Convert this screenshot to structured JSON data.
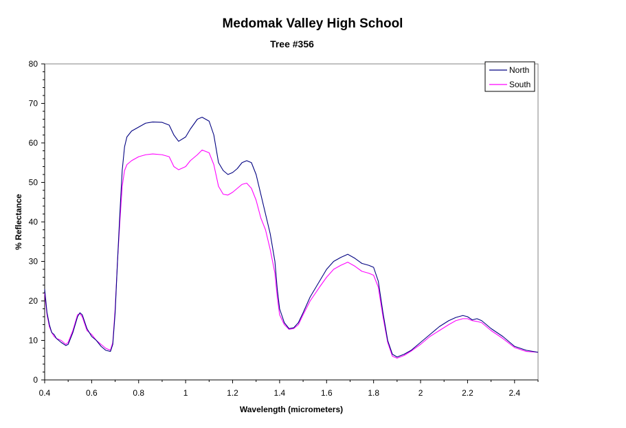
{
  "chart_data": {
    "type": "line",
    "title": "Medomak Valley High School",
    "subtitle": "Tree #356",
    "xlabel": "Wavelength (micrometers)",
    "ylabel": "% Reflectance",
    "xlim": [
      0.4,
      2.5
    ],
    "ylim": [
      0,
      80
    ],
    "x_ticks": [
      0.4,
      0.6,
      0.8,
      1,
      1.2,
      1.4,
      1.6,
      1.8,
      2,
      2.2,
      2.4
    ],
    "x_tick_labels": [
      "0.4",
      "0.6",
      "0.8",
      "1",
      "1.2",
      "1.4",
      "1.6",
      "1.8",
      "2",
      "2.2",
      "2.4"
    ],
    "y_ticks": [
      0,
      10,
      20,
      30,
      40,
      50,
      60,
      70,
      80
    ],
    "y_tick_labels": [
      "0",
      "10",
      "20",
      "30",
      "40",
      "50",
      "60",
      "70",
      "80"
    ],
    "grid": false,
    "legend_position": "top-right",
    "series": [
      {
        "name": "North",
        "color": "#000080",
        "points": [
          [
            0.4,
            23.0
          ],
          [
            0.41,
            17.0
          ],
          [
            0.42,
            14.0
          ],
          [
            0.43,
            12.0
          ],
          [
            0.44,
            11.5
          ],
          [
            0.45,
            10.5
          ],
          [
            0.47,
            9.5
          ],
          [
            0.49,
            8.7
          ],
          [
            0.5,
            9.0
          ],
          [
            0.52,
            12.0
          ],
          [
            0.54,
            16.0
          ],
          [
            0.55,
            17.0
          ],
          [
            0.56,
            16.5
          ],
          [
            0.58,
            13.0
          ],
          [
            0.6,
            11.0
          ],
          [
            0.62,
            10.0
          ],
          [
            0.64,
            8.5
          ],
          [
            0.66,
            7.5
          ],
          [
            0.68,
            7.2
          ],
          [
            0.69,
            9.0
          ],
          [
            0.7,
            17.0
          ],
          [
            0.71,
            30.0
          ],
          [
            0.72,
            42.0
          ],
          [
            0.73,
            53.0
          ],
          [
            0.74,
            59.0
          ],
          [
            0.75,
            61.5
          ],
          [
            0.77,
            63.0
          ],
          [
            0.8,
            64.0
          ],
          [
            0.83,
            65.0
          ],
          [
            0.86,
            65.3
          ],
          [
            0.9,
            65.2
          ],
          [
            0.93,
            64.5
          ],
          [
            0.95,
            62.0
          ],
          [
            0.97,
            60.4
          ],
          [
            1.0,
            61.5
          ],
          [
            1.02,
            63.5
          ],
          [
            1.05,
            66.0
          ],
          [
            1.07,
            66.5
          ],
          [
            1.1,
            65.5
          ],
          [
            1.12,
            62.0
          ],
          [
            1.14,
            55.0
          ],
          [
            1.16,
            53.0
          ],
          [
            1.18,
            52.0
          ],
          [
            1.2,
            52.5
          ],
          [
            1.22,
            53.5
          ],
          [
            1.24,
            55.0
          ],
          [
            1.26,
            55.5
          ],
          [
            1.28,
            55.0
          ],
          [
            1.3,
            52.0
          ],
          [
            1.32,
            47.0
          ],
          [
            1.34,
            42.0
          ],
          [
            1.36,
            37.0
          ],
          [
            1.38,
            30.0
          ],
          [
            1.39,
            23.0
          ],
          [
            1.4,
            18.0
          ],
          [
            1.42,
            14.5
          ],
          [
            1.44,
            13.0
          ],
          [
            1.46,
            13.2
          ],
          [
            1.48,
            14.5
          ],
          [
            1.5,
            17.0
          ],
          [
            1.53,
            21.0
          ],
          [
            1.57,
            25.0
          ],
          [
            1.6,
            28.0
          ],
          [
            1.63,
            30.0
          ],
          [
            1.66,
            31.0
          ],
          [
            1.69,
            31.8
          ],
          [
            1.72,
            30.8
          ],
          [
            1.75,
            29.5
          ],
          [
            1.78,
            29.0
          ],
          [
            1.8,
            28.5
          ],
          [
            1.82,
            25.0
          ],
          [
            1.84,
            17.0
          ],
          [
            1.86,
            10.0
          ],
          [
            1.88,
            6.5
          ],
          [
            1.9,
            5.8
          ],
          [
            1.93,
            6.5
          ],
          [
            1.96,
            7.5
          ],
          [
            2.0,
            9.5
          ],
          [
            2.04,
            11.5
          ],
          [
            2.08,
            13.5
          ],
          [
            2.12,
            15.0
          ],
          [
            2.15,
            15.8
          ],
          [
            2.18,
            16.3
          ],
          [
            2.2,
            16.0
          ],
          [
            2.22,
            15.2
          ],
          [
            2.24,
            15.5
          ],
          [
            2.26,
            15.0
          ],
          [
            2.3,
            13.0
          ],
          [
            2.35,
            11.0
          ],
          [
            2.4,
            8.5
          ],
          [
            2.45,
            7.5
          ],
          [
            2.5,
            7.0
          ]
        ]
      },
      {
        "name": "South",
        "color": "#ff00ff",
        "points": [
          [
            0.4,
            22.0
          ],
          [
            0.41,
            16.5
          ],
          [
            0.42,
            13.5
          ],
          [
            0.43,
            12.0
          ],
          [
            0.44,
            11.0
          ],
          [
            0.45,
            10.5
          ],
          [
            0.47,
            10.0
          ],
          [
            0.49,
            9.0
          ],
          [
            0.5,
            9.5
          ],
          [
            0.52,
            12.5
          ],
          [
            0.54,
            16.5
          ],
          [
            0.55,
            16.8
          ],
          [
            0.56,
            16.0
          ],
          [
            0.58,
            12.5
          ],
          [
            0.6,
            11.5
          ],
          [
            0.62,
            10.0
          ],
          [
            0.64,
            9.0
          ],
          [
            0.66,
            8.0
          ],
          [
            0.68,
            7.5
          ],
          [
            0.69,
            9.5
          ],
          [
            0.7,
            18.0
          ],
          [
            0.71,
            30.0
          ],
          [
            0.72,
            40.0
          ],
          [
            0.73,
            49.0
          ],
          [
            0.74,
            53.0
          ],
          [
            0.75,
            54.5
          ],
          [
            0.77,
            55.5
          ],
          [
            0.8,
            56.5
          ],
          [
            0.83,
            57.0
          ],
          [
            0.86,
            57.2
          ],
          [
            0.9,
            57.0
          ],
          [
            0.93,
            56.5
          ],
          [
            0.95,
            54.0
          ],
          [
            0.97,
            53.2
          ],
          [
            1.0,
            54.0
          ],
          [
            1.02,
            55.5
          ],
          [
            1.05,
            57.0
          ],
          [
            1.07,
            58.2
          ],
          [
            1.1,
            57.5
          ],
          [
            1.12,
            54.5
          ],
          [
            1.14,
            49.0
          ],
          [
            1.16,
            47.0
          ],
          [
            1.18,
            46.8
          ],
          [
            1.2,
            47.5
          ],
          [
            1.22,
            48.5
          ],
          [
            1.24,
            49.5
          ],
          [
            1.26,
            49.8
          ],
          [
            1.28,
            48.5
          ],
          [
            1.3,
            45.5
          ],
          [
            1.32,
            41.0
          ],
          [
            1.34,
            38.0
          ],
          [
            1.36,
            33.0
          ],
          [
            1.38,
            27.0
          ],
          [
            1.39,
            21.0
          ],
          [
            1.4,
            16.5
          ],
          [
            1.42,
            14.0
          ],
          [
            1.44,
            12.8
          ],
          [
            1.46,
            13.0
          ],
          [
            1.48,
            14.0
          ],
          [
            1.5,
            16.5
          ],
          [
            1.53,
            20.0
          ],
          [
            1.57,
            23.5
          ],
          [
            1.6,
            26.0
          ],
          [
            1.63,
            28.0
          ],
          [
            1.66,
            29.0
          ],
          [
            1.69,
            29.8
          ],
          [
            1.72,
            28.8
          ],
          [
            1.75,
            27.5
          ],
          [
            1.78,
            27.0
          ],
          [
            1.8,
            26.5
          ],
          [
            1.82,
            23.5
          ],
          [
            1.84,
            16.0
          ],
          [
            1.86,
            9.5
          ],
          [
            1.88,
            6.0
          ],
          [
            1.9,
            5.5
          ],
          [
            1.93,
            6.2
          ],
          [
            1.96,
            7.3
          ],
          [
            2.0,
            9.0
          ],
          [
            2.04,
            11.0
          ],
          [
            2.08,
            12.5
          ],
          [
            2.12,
            14.0
          ],
          [
            2.15,
            15.0
          ],
          [
            2.18,
            15.5
          ],
          [
            2.2,
            15.5
          ],
          [
            2.22,
            15.0
          ],
          [
            2.24,
            14.8
          ],
          [
            2.26,
            14.5
          ],
          [
            2.3,
            12.5
          ],
          [
            2.35,
            10.5
          ],
          [
            2.4,
            8.2
          ],
          [
            2.45,
            7.2
          ],
          [
            2.5,
            7.0
          ]
        ]
      }
    ]
  }
}
